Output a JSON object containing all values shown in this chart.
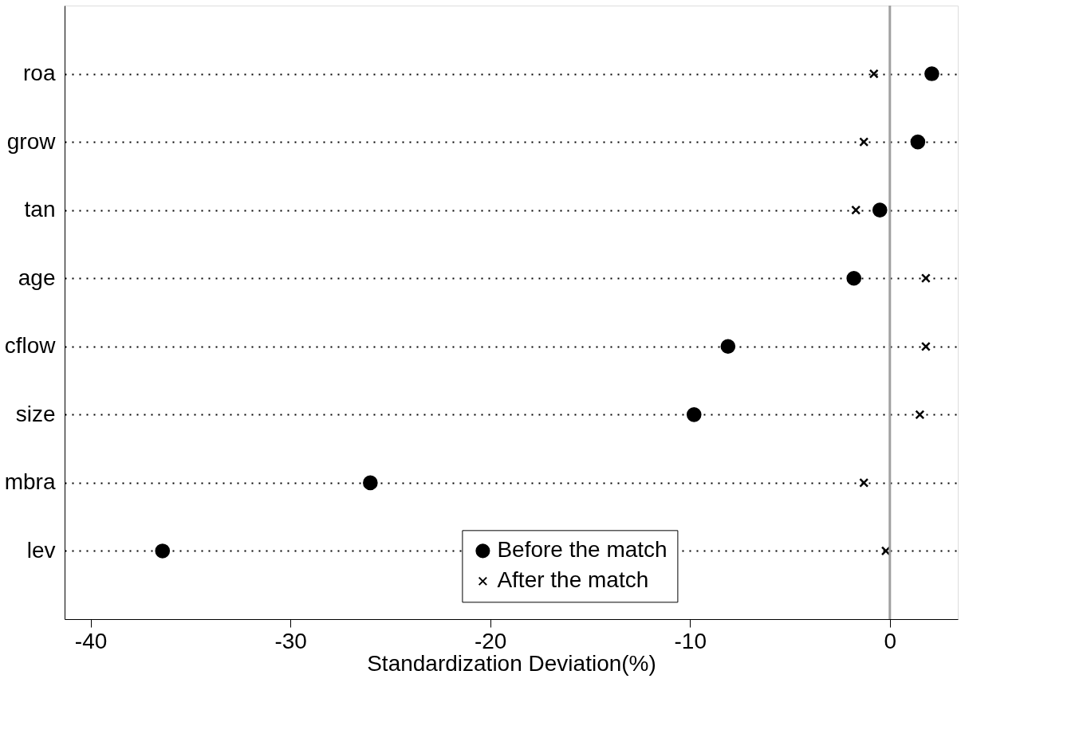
{
  "chart_data": {
    "type": "scatter",
    "xlabel": "Standardization Deviation(%)",
    "categories": [
      "roa",
      "grow",
      "tan",
      "age",
      "cflow",
      "size",
      "mbra",
      "lev"
    ],
    "orientation": "horizontal",
    "series": [
      {
        "name": "Before the match",
        "color": "#000000",
        "marker": "circle",
        "values": [
          2.1,
          1.4,
          -0.5,
          -1.8,
          -8.1,
          -9.8,
          -26.0,
          -36.4
        ]
      },
      {
        "name": "After the match",
        "color": "#000000",
        "marker": "cross",
        "values": [
          -0.8,
          -1.3,
          -1.7,
          1.8,
          1.8,
          1.5,
          -1.3,
          -0.2
        ]
      }
    ],
    "xlim": [
      -41.3,
      3.4
    ],
    "xticks": [
      -40,
      -30,
      -20,
      -10,
      0
    ],
    "ref_lines": [
      {
        "axis": "x",
        "value": 0,
        "color": "#a0a0a0"
      }
    ],
    "grid": "y",
    "line_style": "dotted",
    "legend": "bottom"
  }
}
